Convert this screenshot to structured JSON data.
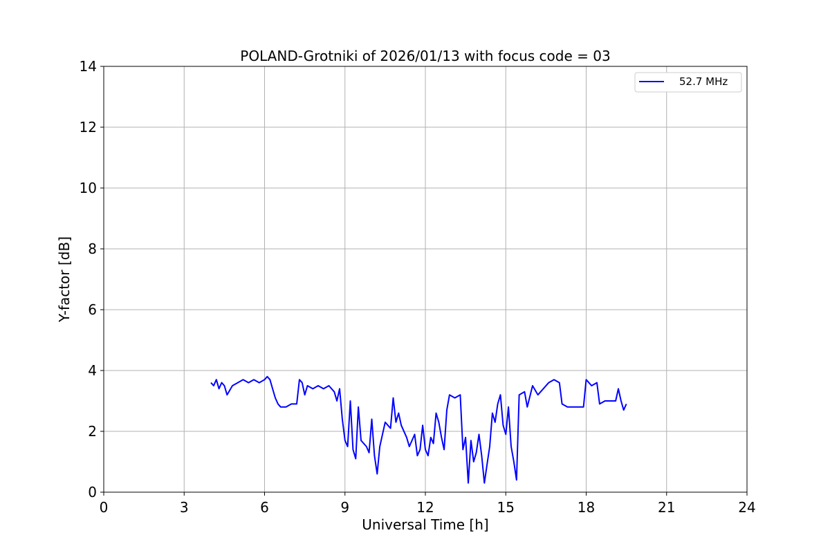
{
  "chart_data": {
    "type": "line",
    "title": "POLAND-Grotniki of 2026/01/13 with focus code = 03",
    "xlabel": "Universal Time [h]",
    "ylabel": "Y-factor [dB]",
    "xlim": [
      0,
      24
    ],
    "ylim": [
      0,
      14
    ],
    "xticks": [
      0,
      3,
      6,
      9,
      12,
      15,
      18,
      21,
      24
    ],
    "yticks": [
      0,
      2,
      4,
      6,
      8,
      10,
      12,
      14
    ],
    "xtick_labels": [
      "0",
      "3",
      "6",
      "9",
      "12",
      "15",
      "18",
      "21",
      "24"
    ],
    "ytick_labels": [
      "0",
      "2",
      "4",
      "6",
      "8",
      "10",
      "12",
      "14"
    ],
    "grid": true,
    "legend_position": "top-right",
    "series": [
      {
        "name": "52.7 MHz",
        "color": "#0000ff",
        "points": [
          [
            4.0,
            3.6
          ],
          [
            4.1,
            3.5
          ],
          [
            4.2,
            3.7
          ],
          [
            4.3,
            3.4
          ],
          [
            4.4,
            3.6
          ],
          [
            4.5,
            3.5
          ],
          [
            4.6,
            3.2
          ],
          [
            4.8,
            3.5
          ],
          [
            5.0,
            3.6
          ],
          [
            5.2,
            3.7
          ],
          [
            5.4,
            3.6
          ],
          [
            5.6,
            3.7
          ],
          [
            5.8,
            3.6
          ],
          [
            6.0,
            3.7
          ],
          [
            6.1,
            3.8
          ],
          [
            6.2,
            3.7
          ],
          [
            6.3,
            3.4
          ],
          [
            6.4,
            3.1
          ],
          [
            6.5,
            2.9
          ],
          [
            6.6,
            2.8
          ],
          [
            6.8,
            2.8
          ],
          [
            7.0,
            2.9
          ],
          [
            7.2,
            2.9
          ],
          [
            7.3,
            3.7
          ],
          [
            7.4,
            3.6
          ],
          [
            7.5,
            3.2
          ],
          [
            7.6,
            3.5
          ],
          [
            7.8,
            3.4
          ],
          [
            8.0,
            3.5
          ],
          [
            8.2,
            3.4
          ],
          [
            8.4,
            3.5
          ],
          [
            8.6,
            3.3
          ],
          [
            8.7,
            3.0
          ],
          [
            8.8,
            3.4
          ],
          [
            8.9,
            2.4
          ],
          [
            9.0,
            1.7
          ],
          [
            9.1,
            1.5
          ],
          [
            9.2,
            3.0
          ],
          [
            9.3,
            1.4
          ],
          [
            9.4,
            1.1
          ],
          [
            9.5,
            2.8
          ],
          [
            9.6,
            1.7
          ],
          [
            9.8,
            1.5
          ],
          [
            9.9,
            1.3
          ],
          [
            10.0,
            2.4
          ],
          [
            10.1,
            1.2
          ],
          [
            10.2,
            0.6
          ],
          [
            10.3,
            1.5
          ],
          [
            10.5,
            2.3
          ],
          [
            10.7,
            2.1
          ],
          [
            10.8,
            3.1
          ],
          [
            10.9,
            2.3
          ],
          [
            11.0,
            2.6
          ],
          [
            11.1,
            2.2
          ],
          [
            11.3,
            1.8
          ],
          [
            11.4,
            1.5
          ],
          [
            11.6,
            1.9
          ],
          [
            11.7,
            1.2
          ],
          [
            11.8,
            1.4
          ],
          [
            11.9,
            2.2
          ],
          [
            12.0,
            1.4
          ],
          [
            12.1,
            1.2
          ],
          [
            12.2,
            1.8
          ],
          [
            12.3,
            1.6
          ],
          [
            12.4,
            2.6
          ],
          [
            12.5,
            2.3
          ],
          [
            12.6,
            1.8
          ],
          [
            12.7,
            1.4
          ],
          [
            12.8,
            2.7
          ],
          [
            12.9,
            3.2
          ],
          [
            13.1,
            3.1
          ],
          [
            13.3,
            3.2
          ],
          [
            13.4,
            1.4
          ],
          [
            13.5,
            1.8
          ],
          [
            13.6,
            0.3
          ],
          [
            13.7,
            1.7
          ],
          [
            13.8,
            1.0
          ],
          [
            13.9,
            1.3
          ],
          [
            14.0,
            1.9
          ],
          [
            14.1,
            1.2
          ],
          [
            14.2,
            0.3
          ],
          [
            14.3,
            0.9
          ],
          [
            14.4,
            1.5
          ],
          [
            14.5,
            2.6
          ],
          [
            14.6,
            2.3
          ],
          [
            14.7,
            2.9
          ],
          [
            14.8,
            3.2
          ],
          [
            14.9,
            2.2
          ],
          [
            15.0,
            1.9
          ],
          [
            15.1,
            2.8
          ],
          [
            15.2,
            1.5
          ],
          [
            15.3,
            1.0
          ],
          [
            15.4,
            0.4
          ],
          [
            15.5,
            3.2
          ],
          [
            15.7,
            3.3
          ],
          [
            15.8,
            2.8
          ],
          [
            16.0,
            3.5
          ],
          [
            16.2,
            3.2
          ],
          [
            16.4,
            3.4
          ],
          [
            16.6,
            3.6
          ],
          [
            16.8,
            3.7
          ],
          [
            17.0,
            3.6
          ],
          [
            17.1,
            2.9
          ],
          [
            17.3,
            2.8
          ],
          [
            17.5,
            2.8
          ],
          [
            17.7,
            2.8
          ],
          [
            17.9,
            2.8
          ],
          [
            18.0,
            3.7
          ],
          [
            18.1,
            3.6
          ],
          [
            18.2,
            3.5
          ],
          [
            18.4,
            3.6
          ],
          [
            18.5,
            2.9
          ],
          [
            18.7,
            3.0
          ],
          [
            18.9,
            3.0
          ],
          [
            19.1,
            3.0
          ],
          [
            19.2,
            3.4
          ],
          [
            19.3,
            3.0
          ],
          [
            19.4,
            2.7
          ],
          [
            19.5,
            2.9
          ]
        ]
      }
    ]
  }
}
